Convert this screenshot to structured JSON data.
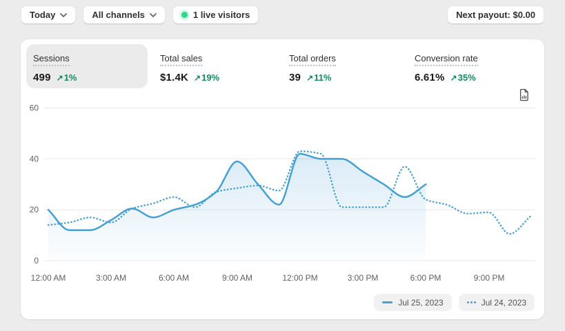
{
  "toolbar": {
    "date_filter": "Today",
    "channel_filter": "All channels",
    "live_visitors": "1 live visitors",
    "next_payout": "Next payout: $0.00"
  },
  "metrics": [
    {
      "label": "Sessions",
      "value": "499",
      "change": "1%",
      "selected": true
    },
    {
      "label": "Total sales",
      "value": "$1.4K",
      "change": "19%",
      "selected": false
    },
    {
      "label": "Total orders",
      "value": "39",
      "change": "11%",
      "selected": false
    },
    {
      "label": "Conversion rate",
      "value": "6.61%",
      "change": "35%",
      "selected": false
    }
  ],
  "change_arrow": "↗",
  "colors": {
    "line_blue": "#45a0d6",
    "positive_green": "#138a5e",
    "live_dot_green": "#2fd48f",
    "card_bg": "#ffffff",
    "page_bg": "#ececec",
    "selected_tab_bg": "#ebebeb"
  },
  "chart_data": {
    "type": "line",
    "metric": "Sessions",
    "x_unit": "hour",
    "x_tick_labels": [
      "12:00 AM",
      "3:00 AM",
      "6:00 AM",
      "9:00 AM",
      "12:00 PM",
      "3:00 PM",
      "6:00 PM",
      "9:00 PM"
    ],
    "y_ticks": [
      0,
      20,
      40,
      60
    ],
    "ylim": [
      0,
      60
    ],
    "grid": true,
    "legend_position": "bottom-right",
    "series": [
      {
        "name": "Jul 25, 2023",
        "style": "solid",
        "area_fill": true,
        "start_hour": 0,
        "interval_hours": 1,
        "values": [
          20,
          12,
          12,
          16,
          20.5,
          17,
          20,
          22,
          27,
          39,
          30,
          22,
          42,
          40,
          40,
          35,
          30,
          25,
          30
        ]
      },
      {
        "name": "Jul 24, 2023",
        "style": "dotted",
        "area_fill": false,
        "start_hour": 0,
        "interval_hours": 1,
        "values": [
          14,
          15,
          17,
          15,
          20.5,
          22.5,
          25,
          21,
          27,
          28.5,
          29.5,
          27.5,
          43,
          42,
          21,
          21,
          21,
          37,
          24,
          22,
          18.5,
          19,
          10.5,
          17.5
        ]
      }
    ],
    "legend": [
      {
        "label": "Jul 25, 2023",
        "style": "solid"
      },
      {
        "label": "Jul 24, 2023",
        "style": "dotted"
      }
    ]
  }
}
